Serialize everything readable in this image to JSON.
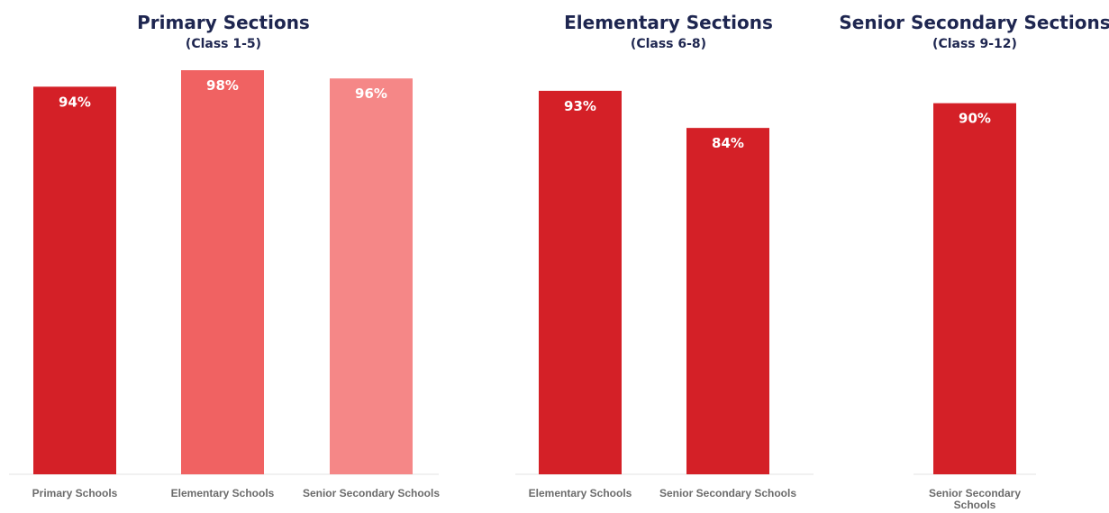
{
  "colors": {
    "dark_red": "#d42027",
    "medium_red": "#f06262",
    "light_red": "#f58787",
    "title": "#1e2650",
    "axis_label": "#6b6b6b"
  },
  "chart_data": [
    {
      "type": "bar",
      "title": "Primary Sections",
      "subtitle": "(Class 1-5)",
      "categories": [
        "Primary Schools",
        "Elementary Schools",
        "Senior Secondary Schools"
      ],
      "values": [
        94,
        98,
        96
      ],
      "value_labels": [
        "94%",
        "98%",
        "96%"
      ],
      "bar_colors": [
        "#d42027",
        "#f06262",
        "#f58787"
      ],
      "ylim": [
        0,
        100
      ],
      "grid": false,
      "legend": "none"
    },
    {
      "type": "bar",
      "title": "Elementary Sections",
      "subtitle": "(Class 6-8)",
      "categories": [
        "Elementary Schools",
        "Senior Secondary Schools"
      ],
      "values": [
        93,
        84
      ],
      "value_labels": [
        "93%",
        "84%"
      ],
      "bar_colors": [
        "#d42027",
        "#d42027"
      ],
      "ylim": [
        0,
        100
      ],
      "grid": false,
      "legend": "none"
    },
    {
      "type": "bar",
      "title": "Senior Secondary Sections",
      "subtitle": "(Class 9-12)",
      "categories": [
        "Senior Secondary Schools"
      ],
      "values": [
        90
      ],
      "value_labels": [
        "90%"
      ],
      "bar_colors": [
        "#d42027"
      ],
      "ylim": [
        0,
        100
      ],
      "grid": false,
      "legend": "none"
    }
  ]
}
